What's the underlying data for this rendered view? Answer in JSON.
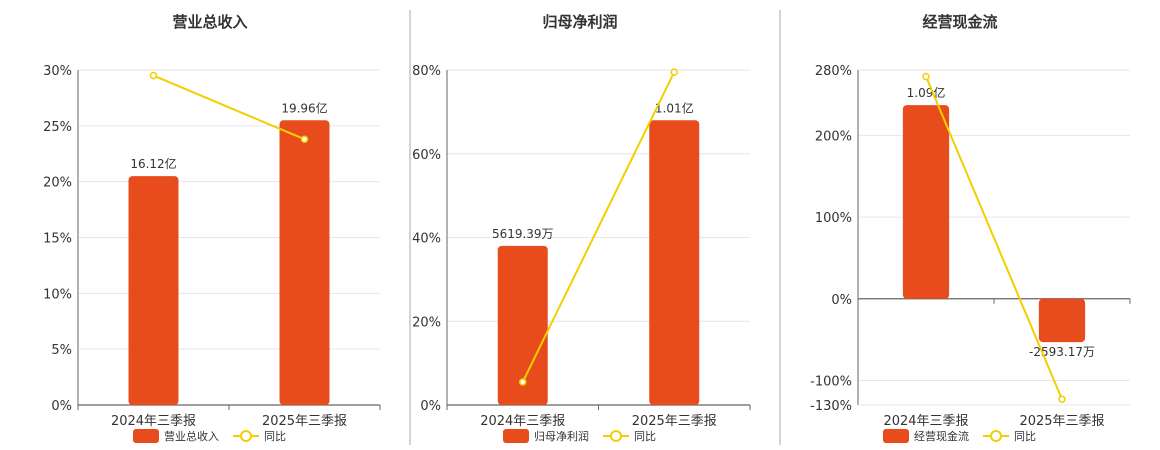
{
  "colors": {
    "bar": "#e84c1c",
    "line": "#f2cf00",
    "grid": "#e6e6e6",
    "axis": "#666666",
    "divider": "#aaaaaa"
  },
  "legend": {
    "bar_icon": "bar-swatch",
    "line_icon": "line-circle-marker"
  },
  "chart_data": [
    {
      "type": "bar",
      "title": "营业总收入",
      "categories": [
        "2024年三季报",
        "2025年三季报"
      ],
      "series": [
        {
          "name": "营业总收入",
          "type": "bar",
          "values": [
            20.5,
            25.5
          ],
          "labels": [
            "16.12亿",
            "19.96亿"
          ]
        },
        {
          "name": "同比",
          "type": "line",
          "values": [
            29.5,
            23.8
          ]
        }
      ],
      "yticks": [
        "30%",
        "25%",
        "20%",
        "15%",
        "10%",
        "5%",
        "0%"
      ],
      "ylim": [
        0,
        30
      ],
      "grid": true,
      "legend_position": "bottom"
    },
    {
      "type": "bar",
      "title": "归母净利润",
      "categories": [
        "2024年三季报",
        "2025年三季报"
      ],
      "series": [
        {
          "name": "归母净利润",
          "type": "bar",
          "values": [
            38,
            68
          ],
          "labels": [
            "5619.39万",
            "1.01亿"
          ]
        },
        {
          "name": "同比",
          "type": "line",
          "values": [
            5.5,
            79.5
          ]
        }
      ],
      "yticks": [
        "80%",
        "60%",
        "40%",
        "20%",
        "0%"
      ],
      "ylim": [
        0,
        80
      ],
      "grid": true,
      "legend_position": "bottom"
    },
    {
      "type": "bar",
      "title": "经营现金流",
      "categories": [
        "2024年三季报",
        "2025年三季报"
      ],
      "series": [
        {
          "name": "经营现金流",
          "type": "bar",
          "values": [
            237,
            -53
          ],
          "labels": [
            "1.09亿",
            "-2593.17万"
          ]
        },
        {
          "name": "同比",
          "type": "line",
          "values": [
            272,
            -123
          ]
        }
      ],
      "yticks": [
        "280%",
        "200%",
        "100%",
        "0%",
        "-100%",
        "-130%"
      ],
      "ylim": [
        -130,
        280
      ],
      "grid": true,
      "legend_position": "bottom"
    }
  ]
}
